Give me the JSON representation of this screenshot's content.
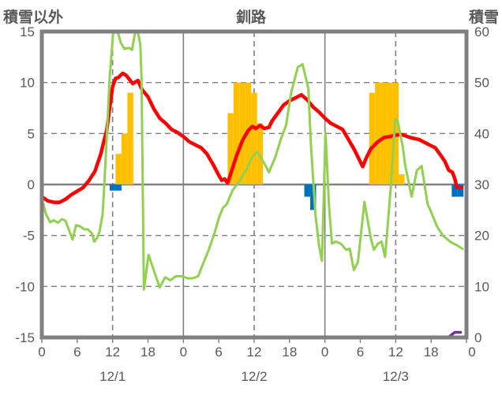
{
  "titles": {
    "left_axis_title": "積雪以外",
    "station_title": "釧路",
    "right_axis_title": "積雪"
  },
  "colors": {
    "red_line": "#ff0000",
    "green_line": "#92d050",
    "orange_bars": "#ffc000",
    "blue_bars": "#0070c0",
    "purple_line": "#7030a0",
    "grid": "#808080",
    "border": "#808080",
    "text": "#595959",
    "background": "#ffffff"
  },
  "chart_data": {
    "type": "line+bar combo (weather time series, hourly, 3 days)",
    "title": "釧路",
    "x_axis": {
      "range_hours": [
        0,
        72
      ],
      "hour_tick_labels": [
        "0",
        "6",
        "12",
        "18",
        "0",
        "6",
        "12",
        "18",
        "0",
        "6",
        "12",
        "18",
        "0"
      ],
      "hour_tick_positions": [
        0,
        6,
        12,
        18,
        24,
        30,
        36,
        42,
        48,
        54,
        60,
        66,
        72
      ],
      "date_labels": [
        "12/1",
        "12/2",
        "12/3"
      ],
      "date_label_positions": [
        12,
        36,
        60
      ],
      "solid_vlines_at": [
        24,
        48
      ],
      "dashed_vlines_at": [
        12,
        36,
        60
      ]
    },
    "left_axis": {
      "title": "積雪以外",
      "ticks": [
        15,
        10,
        5,
        0,
        -5,
        -10,
        -15
      ],
      "range": [
        -15,
        15
      ],
      "dashed_hlines_at": [
        10,
        5,
        -5,
        -10
      ],
      "solid_hline_at": 0
    },
    "right_axis": {
      "title": "積雪",
      "ticks": [
        60,
        50,
        40,
        30,
        20,
        10,
        0
      ],
      "range": [
        0,
        60
      ]
    },
    "series": [
      {
        "name": "orange-bars",
        "type": "bar",
        "axis": "left",
        "color": "#ffc000",
        "points": [
          [
            13,
            3
          ],
          [
            14,
            5
          ],
          [
            15,
            9
          ],
          [
            32,
            7
          ],
          [
            33,
            10
          ],
          [
            34,
            10
          ],
          [
            35,
            10
          ],
          [
            36,
            9
          ],
          [
            37,
            6
          ],
          [
            56,
            9
          ],
          [
            57,
            10
          ],
          [
            58,
            10
          ],
          [
            59,
            10
          ],
          [
            60,
            10
          ],
          [
            61,
            1
          ]
        ]
      },
      {
        "name": "blue-bars",
        "type": "bar",
        "axis": "left",
        "color": "#0070c0",
        "points": [
          [
            12,
            -0.6
          ],
          [
            13,
            -0.6
          ],
          [
            45,
            -1.2
          ],
          [
            46,
            -2.5
          ],
          [
            70,
            -1.2
          ],
          [
            71,
            -1.2
          ]
        ]
      },
      {
        "name": "red-line",
        "type": "line",
        "axis": "left",
        "color": "#ff0000",
        "width": 4.5,
        "points": [
          [
            0,
            -1.2
          ],
          [
            1,
            -1.6
          ],
          [
            2,
            -1.75
          ],
          [
            3,
            -1.75
          ],
          [
            4,
            -1.45
          ],
          [
            5,
            -1.0
          ],
          [
            6,
            -0.65
          ],
          [
            7,
            -0.3
          ],
          [
            8,
            0.4
          ],
          [
            9,
            1.3
          ],
          [
            10,
            3.0
          ],
          [
            10.5,
            4.2
          ],
          [
            11,
            5.3
          ],
          [
            11.5,
            7.5
          ],
          [
            12,
            9.6
          ],
          [
            12.5,
            10.4
          ],
          [
            13,
            10.5
          ],
          [
            13.7,
            10.9
          ],
          [
            14.3,
            10.7
          ],
          [
            15.4,
            9.9
          ],
          [
            16.3,
            10.2
          ],
          [
            17,
            9.3
          ],
          [
            18,
            8.6
          ],
          [
            19,
            7.4
          ],
          [
            20,
            6.5
          ],
          [
            21,
            6.0
          ],
          [
            22,
            5.4
          ],
          [
            23,
            5.1
          ],
          [
            24,
            4.7
          ],
          [
            25,
            4.2
          ],
          [
            26,
            3.9
          ],
          [
            27,
            3.6
          ],
          [
            28,
            3.0
          ],
          [
            29,
            2.0
          ],
          [
            30,
            0.9
          ],
          [
            30.5,
            0.4
          ],
          [
            31,
            0.55
          ],
          [
            31.5,
            0.15
          ],
          [
            32,
            1.0
          ],
          [
            33,
            2.8
          ],
          [
            34,
            4.3
          ],
          [
            35,
            5.3
          ],
          [
            35.7,
            5.7
          ],
          [
            36.3,
            5.5
          ],
          [
            37,
            5.8
          ],
          [
            37.7,
            5.5
          ],
          [
            38.5,
            5.6
          ],
          [
            39,
            6.2
          ],
          [
            40,
            7.0
          ],
          [
            41,
            7.8
          ],
          [
            42,
            8.2
          ],
          [
            43,
            8.5
          ],
          [
            44,
            8.8
          ],
          [
            45,
            8.3
          ],
          [
            46,
            7.6
          ],
          [
            47,
            7.1
          ],
          [
            48,
            6.5
          ],
          [
            49,
            6.0
          ],
          [
            50,
            5.7
          ],
          [
            51,
            5.4
          ],
          [
            52,
            4.4
          ],
          [
            53,
            3.4
          ],
          [
            54.4,
            1.75
          ],
          [
            55,
            2.6
          ],
          [
            55.8,
            3.5
          ],
          [
            57,
            4.2
          ],
          [
            58,
            4.6
          ],
          [
            59,
            4.7
          ],
          [
            60,
            4.85
          ],
          [
            61,
            4.9
          ],
          [
            62.5,
            4.6
          ],
          [
            64,
            4.4
          ],
          [
            65,
            4.1
          ],
          [
            66,
            3.8
          ],
          [
            66.7,
            3.6
          ],
          [
            67.6,
            2.9
          ],
          [
            68.3,
            2.3
          ],
          [
            69,
            1.4
          ],
          [
            69.6,
            1.2
          ],
          [
            70,
            0.6
          ],
          [
            70.4,
            -0.3
          ],
          [
            71.2,
            -0.3
          ]
        ]
      },
      {
        "name": "green-line",
        "type": "line",
        "axis": "left",
        "color": "#92d050",
        "width": 3,
        "points": [
          [
            0,
            -1.4
          ],
          [
            0.7,
            -2.9
          ],
          [
            1.4,
            -3.7
          ],
          [
            2,
            -3.5
          ],
          [
            2.7,
            -3.75
          ],
          [
            3.4,
            -3.4
          ],
          [
            4,
            -3.55
          ],
          [
            5.2,
            -5.4
          ],
          [
            5.8,
            -4.0
          ],
          [
            6.5,
            -4.1
          ],
          [
            7.2,
            -4.4
          ],
          [
            7.8,
            -4.4
          ],
          [
            8.5,
            -4.8
          ],
          [
            8.9,
            -5.6
          ],
          [
            9.4,
            -5.2
          ],
          [
            9.8,
            -4.6
          ],
          [
            10.3,
            -2.9
          ],
          [
            10.6,
            0
          ],
          [
            11.5,
            10.4
          ],
          [
            12.1,
            14.9
          ],
          [
            12.9,
            14.9
          ],
          [
            13.4,
            13.9
          ],
          [
            14,
            13.3
          ],
          [
            14.8,
            13.4
          ],
          [
            15.3,
            13.2
          ],
          [
            15.8,
            14.9
          ],
          [
            16.3,
            14.9
          ],
          [
            16.7,
            13.7
          ],
          [
            16.9,
            10.4
          ],
          [
            17.3,
            -10.3
          ],
          [
            18.1,
            -6.9
          ],
          [
            19.2,
            -8.8
          ],
          [
            20,
            -10.1
          ],
          [
            20.9,
            -9.1
          ],
          [
            21.8,
            -9.4
          ],
          [
            22.7,
            -9.0
          ],
          [
            23.8,
            -9.0
          ],
          [
            24.7,
            -9.2
          ],
          [
            25.6,
            -9.2
          ],
          [
            26.5,
            -9.0
          ],
          [
            27.4,
            -7.7
          ],
          [
            28.3,
            -6.4
          ],
          [
            29.2,
            -4.9
          ],
          [
            30,
            -3.3
          ],
          [
            30.7,
            -2.3
          ],
          [
            31.4,
            -1.9
          ],
          [
            32.3,
            -0.6
          ],
          [
            33.6,
            0.4
          ],
          [
            34.7,
            1.5
          ],
          [
            35.8,
            2.8
          ],
          [
            36.5,
            3.2
          ],
          [
            37.6,
            2.2
          ],
          [
            38.5,
            1.2
          ],
          [
            39.6,
            2.7
          ],
          [
            40.5,
            4.4
          ],
          [
            41.4,
            5.8
          ],
          [
            42.3,
            9.1
          ],
          [
            43.4,
            11.5
          ],
          [
            44.2,
            11.8
          ],
          [
            45.2,
            9.4
          ],
          [
            45.6,
            4.2
          ],
          [
            46.4,
            -3.0
          ],
          [
            47,
            -6.0
          ],
          [
            47.5,
            -7.5
          ],
          [
            48.1,
            5.1
          ],
          [
            48.7,
            -2.2
          ],
          [
            49.2,
            -5.8
          ],
          [
            49.8,
            -5.6
          ],
          [
            50.7,
            -5.8
          ],
          [
            51.6,
            -6.4
          ],
          [
            52.2,
            -6.3
          ],
          [
            52.9,
            -8.4
          ],
          [
            53.6,
            -7.6
          ],
          [
            54.7,
            -1.7
          ],
          [
            55.8,
            -5.3
          ],
          [
            56.3,
            -6.4
          ],
          [
            57,
            -5.8
          ],
          [
            57.6,
            -5.6
          ],
          [
            58.2,
            -7.1
          ],
          [
            59.2,
            0
          ],
          [
            59.9,
            6.4
          ],
          [
            60.3,
            6.3
          ],
          [
            61.2,
            3.7
          ],
          [
            61.6,
            1.9
          ],
          [
            62.7,
            -1.2
          ],
          [
            63.6,
            1.4
          ],
          [
            64.4,
            1.8
          ],
          [
            65.4,
            -1.9
          ],
          [
            66,
            -2.7
          ],
          [
            67,
            -4.1
          ],
          [
            68,
            -5.0
          ],
          [
            69.2,
            -5.6
          ],
          [
            70.5,
            -6.0
          ],
          [
            71.3,
            -6.3
          ]
        ]
      },
      {
        "name": "purple-line",
        "type": "line",
        "axis": "right",
        "color": "#7030a0",
        "width": 3.5,
        "points": [
          [
            0,
            0
          ],
          [
            68.5,
            0
          ],
          [
            69,
            0.1
          ],
          [
            70,
            1
          ],
          [
            71,
            1
          ]
        ]
      }
    ],
    "grid": true,
    "legend": "none"
  }
}
